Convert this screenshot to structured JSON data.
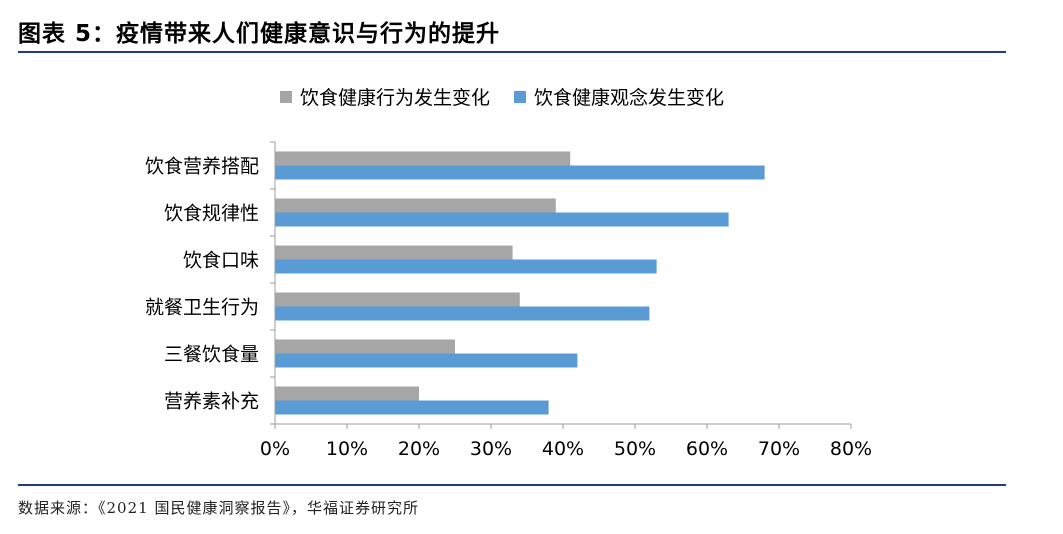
{
  "figure": {
    "title": "图表 5：疫情带来人们健康意识与行为的提升",
    "source": "数据来源：《2021 国民健康洞察报告》，华福证券研究所"
  },
  "chart_data": {
    "type": "bar",
    "orientation": "horizontal",
    "categories": [
      "饮食营养搭配",
      "饮食规律性",
      "饮食口味",
      "就餐卫生行为",
      "三餐饮食量",
      "营养素补充"
    ],
    "series": [
      {
        "name": "饮食健康行为发生变化",
        "color": "#a6a6a6",
        "values": [
          41,
          39,
          33,
          34,
          25,
          20
        ]
      },
      {
        "name": "饮食健康观念发生变化",
        "color": "#5b9bd5",
        "values": [
          68,
          63,
          53,
          52,
          42,
          38
        ]
      }
    ],
    "xlim": [
      0,
      80
    ],
    "xticks": [
      "0%",
      "10%",
      "20%",
      "30%",
      "40%",
      "50%",
      "60%",
      "70%",
      "80%"
    ],
    "legend_position": "top",
    "grid": false
  }
}
